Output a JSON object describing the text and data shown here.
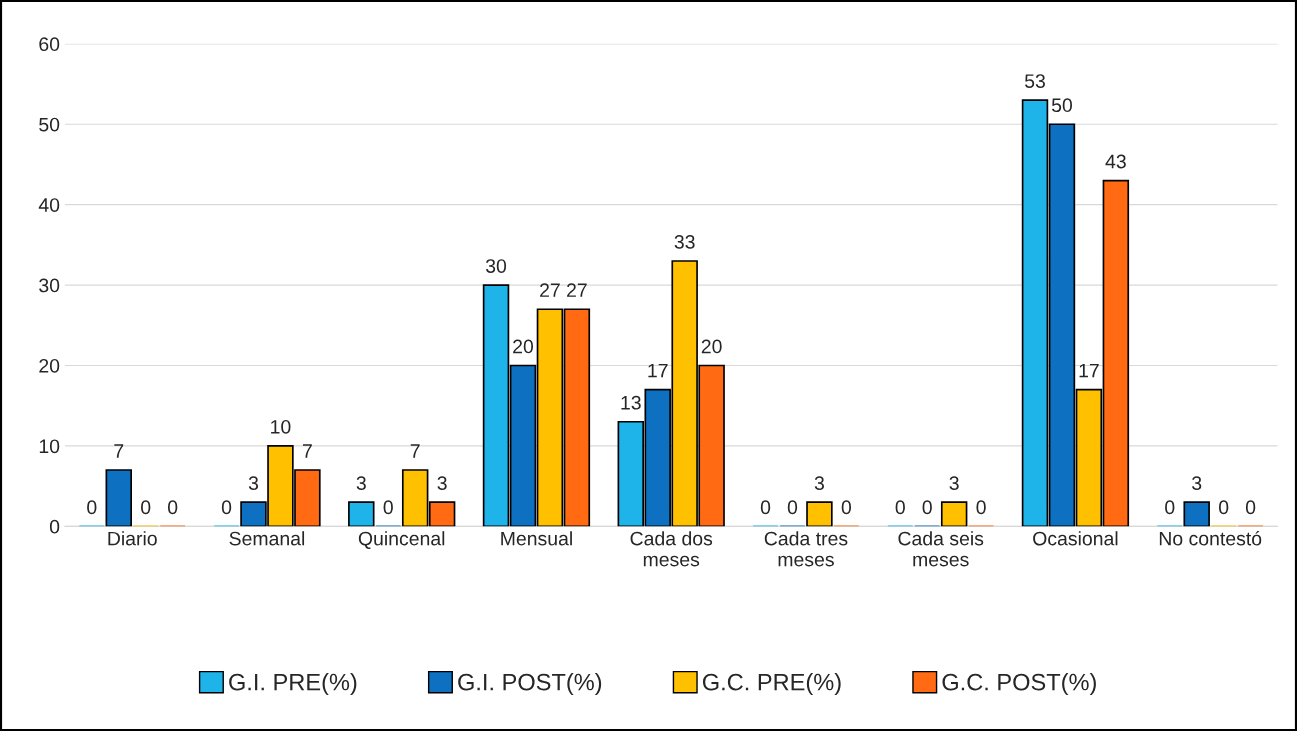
{
  "chart_data": {
    "type": "bar",
    "categories": [
      "Diario",
      "Semanal",
      "Quincenal",
      "Mensual",
      "Cada dos meses",
      "Cada tres meses",
      "Cada seis meses",
      "Ocasional",
      "No contestó"
    ],
    "series": [
      {
        "name": "G.I. PRE(%)",
        "color": "#1fb4e9",
        "values": [
          0,
          0,
          3,
          30,
          13,
          0,
          0,
          53,
          0
        ]
      },
      {
        "name": "G.I. POST(%)",
        "color": "#0d70c0",
        "values": [
          7,
          3,
          0,
          20,
          17,
          0,
          0,
          50,
          3
        ]
      },
      {
        "name": "G.C. PRE(%)",
        "color": "#ffc000",
        "values": [
          0,
          10,
          7,
          27,
          33,
          3,
          3,
          17,
          0
        ]
      },
      {
        "name": "G.C. POST(%)",
        "color": "#ff6a13",
        "values": [
          0,
          7,
          3,
          27,
          20,
          0,
          0,
          43,
          0
        ]
      }
    ],
    "ylim": [
      0,
      60
    ],
    "yticks": [
      0,
      10,
      20,
      30,
      40,
      50,
      60
    ],
    "grid": "y",
    "legend": "bottom",
    "data_labels": true
  }
}
